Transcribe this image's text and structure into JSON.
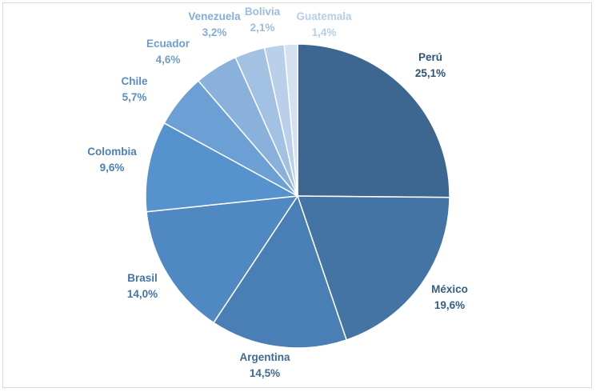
{
  "chart_data": {
    "type": "pie",
    "title": "",
    "slices": [
      {
        "label": "Perú",
        "value": 25.1,
        "display": "25,1%",
        "color": "#3d6690",
        "text_color": "#2e5377"
      },
      {
        "label": "México",
        "value": 19.6,
        "display": "19,6%",
        "color": "#4374a4",
        "text_color": "#335f88"
      },
      {
        "label": "Argentina",
        "value": 14.5,
        "display": "14,5%",
        "color": "#4a7fb5",
        "text_color": "#3c6a97"
      },
      {
        "label": "Brasil",
        "value": 14.0,
        "display": "14,0%",
        "color": "#5088c1",
        "text_color": "#4574a3"
      },
      {
        "label": "Colombia",
        "value": 9.6,
        "display": "9,6%",
        "color": "#5693ce",
        "text_color": "#4c80b4"
      },
      {
        "label": "Chile",
        "value": 5.7,
        "display": "5,7%",
        "color": "#6c9fd4",
        "text_color": "#5b8cc0"
      },
      {
        "label": "Ecuador",
        "value": 4.6,
        "display": "4,6%",
        "color": "#8ab1db",
        "text_color": "#6f9cc9"
      },
      {
        "label": "Venezuela",
        "value": 3.2,
        "display": "3,2%",
        "color": "#a3c1e3",
        "text_color": "#86acd3"
      },
      {
        "label": "Bolivia",
        "value": 2.1,
        "display": "2,1%",
        "color": "#bad0ea",
        "text_color": "#9dbcde"
      },
      {
        "label": "Guatemala",
        "value": 1.4,
        "display": "1,4%",
        "color": "#d3e1f1",
        "text_color": "#b6cde7"
      }
    ]
  }
}
